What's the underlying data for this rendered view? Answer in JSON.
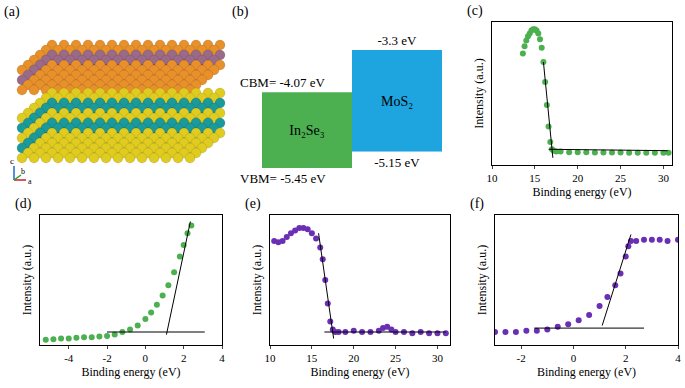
{
  "structure": {
    "label": "(a)",
    "axes": [
      "c",
      "b",
      "a"
    ]
  },
  "band_diagram": {
    "label": "(b)",
    "materials": [
      {
        "name": "In₂Se₃",
        "color": "#4cb050",
        "cbm": -4.07,
        "vbm": -5.45,
        "cbm_label": "CBM= -4.07 eV",
        "vbm_label": "VBM= -5.45 eV"
      },
      {
        "name": "MoS₂",
        "color": "#1ea5e0",
        "cbm": -3.3,
        "vbm": -5.15,
        "cbm_label": "-3.3 eV",
        "vbm_label": "-5.15 eV"
      }
    ]
  },
  "chart_data": [
    {
      "type": "scatter",
      "title": "(c)",
      "x_label": "Binding energy (eV)",
      "y_label": "Intensity (a.u.)",
      "xlim": [
        10,
        31
      ],
      "xticks": [
        10,
        15,
        20,
        25,
        30
      ],
      "ylim": [
        0,
        1
      ],
      "yticks": [],
      "tick_labels": "x",
      "series": [
        {
          "type": "scatter",
          "marker": "circle",
          "color": "#4cb050",
          "x": [
            13.6,
            13.8,
            14.0,
            14.2,
            14.4,
            14.6,
            14.8,
            15.0,
            15.2,
            15.4,
            15.6,
            15.8,
            16.0,
            16.2,
            16.4,
            16.6,
            16.8,
            17.0,
            17.2,
            17.5,
            18,
            19,
            20,
            21,
            22,
            23,
            24,
            25,
            26,
            27,
            28,
            29,
            30,
            30.6
          ],
          "values": [
            0.78,
            0.83,
            0.87,
            0.9,
            0.92,
            0.94,
            0.95,
            0.95,
            0.94,
            0.92,
            0.88,
            0.82,
            0.72,
            0.58,
            0.42,
            0.27,
            0.16,
            0.11,
            0.1,
            0.095,
            0.095,
            0.09,
            0.09,
            0.09,
            0.088,
            0.088,
            0.087,
            0.087,
            0.086,
            0.086,
            0.085,
            0.085,
            0.085,
            0.085
          ]
        },
        {
          "type": "line",
          "line_style": "solid",
          "color": "#000000",
          "x": [
            16.0,
            17.1
          ],
          "values": [
            0.72,
            0.05
          ]
        },
        {
          "type": "line",
          "line_style": "solid",
          "color": "#000000",
          "x": [
            16.6,
            30.5
          ],
          "values": [
            0.11,
            0.1
          ]
        }
      ]
    },
    {
      "type": "scatter",
      "title": "(d)",
      "x_label": "Binding energy (eV)",
      "y_label": "Intensity (a.u.)",
      "xlim": [
        -5.5,
        4
      ],
      "xticks": [
        -4,
        -2,
        0,
        2,
        4
      ],
      "ylim": [
        0,
        1
      ],
      "yticks": [],
      "tick_labels": "x",
      "series": [
        {
          "type": "scatter",
          "marker": "circle",
          "color": "#4cb050",
          "x": [
            -5.2,
            -4.8,
            -4.4,
            -4,
            -3.6,
            -3.2,
            -2.8,
            -2.4,
            -2,
            -1.6,
            -1.2,
            -0.8,
            -0.4,
            0,
            0.3,
            0.6,
            0.9,
            1.2,
            1.5,
            1.8,
            2.0,
            2.2,
            2.4
          ],
          "values": [
            0.04,
            0.045,
            0.05,
            0.05,
            0.055,
            0.06,
            0.06,
            0.065,
            0.07,
            0.08,
            0.1,
            0.12,
            0.15,
            0.2,
            0.25,
            0.31,
            0.38,
            0.46,
            0.56,
            0.68,
            0.77,
            0.86,
            0.92
          ]
        },
        {
          "type": "line",
          "line_style": "solid",
          "color": "#000000",
          "x": [
            1.1,
            2.35
          ],
          "values": [
            0.08,
            0.95
          ]
        },
        {
          "type": "line",
          "line_style": "solid",
          "color": "#000000",
          "x": [
            -2,
            3.1
          ],
          "values": [
            0.1,
            0.1
          ]
        }
      ]
    },
    {
      "type": "scatter",
      "title": "(e)",
      "x_label": "Binding energy (eV)",
      "y_label": "Intensity (a.u.)",
      "xlim": [
        10,
        31.5
      ],
      "xticks": [
        10,
        15,
        20,
        25,
        30
      ],
      "ylim": [
        0,
        1
      ],
      "yticks": [],
      "tick_labels": "x",
      "series": [
        {
          "type": "scatter",
          "marker": "circle",
          "color": "#6a2fb5",
          "x": [
            10.5,
            11,
            11.5,
            12,
            12.5,
            13,
            13.5,
            14,
            14.5,
            15,
            15.5,
            16,
            16.3,
            16.6,
            16.9,
            17.2,
            17.5,
            17.8,
            18.2,
            19,
            20,
            21,
            22,
            23,
            23.5,
            24,
            24.5,
            25,
            26,
            27,
            28,
            29,
            30,
            31
          ],
          "values": [
            0.8,
            0.79,
            0.8,
            0.83,
            0.86,
            0.88,
            0.9,
            0.9,
            0.89,
            0.86,
            0.82,
            0.75,
            0.66,
            0.5,
            0.32,
            0.18,
            0.12,
            0.1,
            0.1,
            0.1,
            0.11,
            0.1,
            0.1,
            0.11,
            0.13,
            0.14,
            0.12,
            0.1,
            0.1,
            0.09,
            0.1,
            0.09,
            0.09,
            0.09
          ]
        },
        {
          "type": "line",
          "line_style": "solid",
          "color": "#000000",
          "x": [
            15.8,
            17.6
          ],
          "values": [
            0.86,
            0.05
          ]
        },
        {
          "type": "line",
          "line_style": "solid",
          "color": "#000000",
          "x": [
            16.5,
            31
          ],
          "values": [
            0.1,
            0.1
          ]
        }
      ]
    },
    {
      "type": "scatter",
      "title": "(f)",
      "x_label": "Binding energy (eV)",
      "y_label": "Intensity (a.u.)",
      "xlim": [
        -3,
        4
      ],
      "xticks": [
        -2,
        0,
        2,
        4
      ],
      "ylim": [
        0,
        1
      ],
      "yticks": [],
      "tick_labels": "x",
      "series": [
        {
          "type": "scatter",
          "marker": "circle",
          "color": "#6a2fb5",
          "x": [
            -3,
            -2.6,
            -2.2,
            -1.8,
            -1.4,
            -1,
            -0.6,
            -0.2,
            0.2,
            0.6,
            1.0,
            1.3,
            1.6,
            1.8,
            2.0,
            2.1,
            2.2,
            2.4,
            2.7,
            3,
            3.3,
            3.6,
            4
          ],
          "values": [
            0.1,
            0.1,
            0.1,
            0.11,
            0.11,
            0.12,
            0.14,
            0.16,
            0.19,
            0.23,
            0.3,
            0.37,
            0.46,
            0.55,
            0.68,
            0.76,
            0.8,
            0.8,
            0.81,
            0.81,
            0.81,
            0.8,
            0.81
          ]
        },
        {
          "type": "line",
          "line_style": "solid",
          "color": "#000000",
          "x": [
            1.1,
            2.2
          ],
          "values": [
            0.15,
            0.85
          ]
        },
        {
          "type": "line",
          "line_style": "solid",
          "color": "#000000",
          "x": [
            -1.5,
            2.7
          ],
          "values": [
            0.13,
            0.13
          ]
        }
      ]
    }
  ]
}
